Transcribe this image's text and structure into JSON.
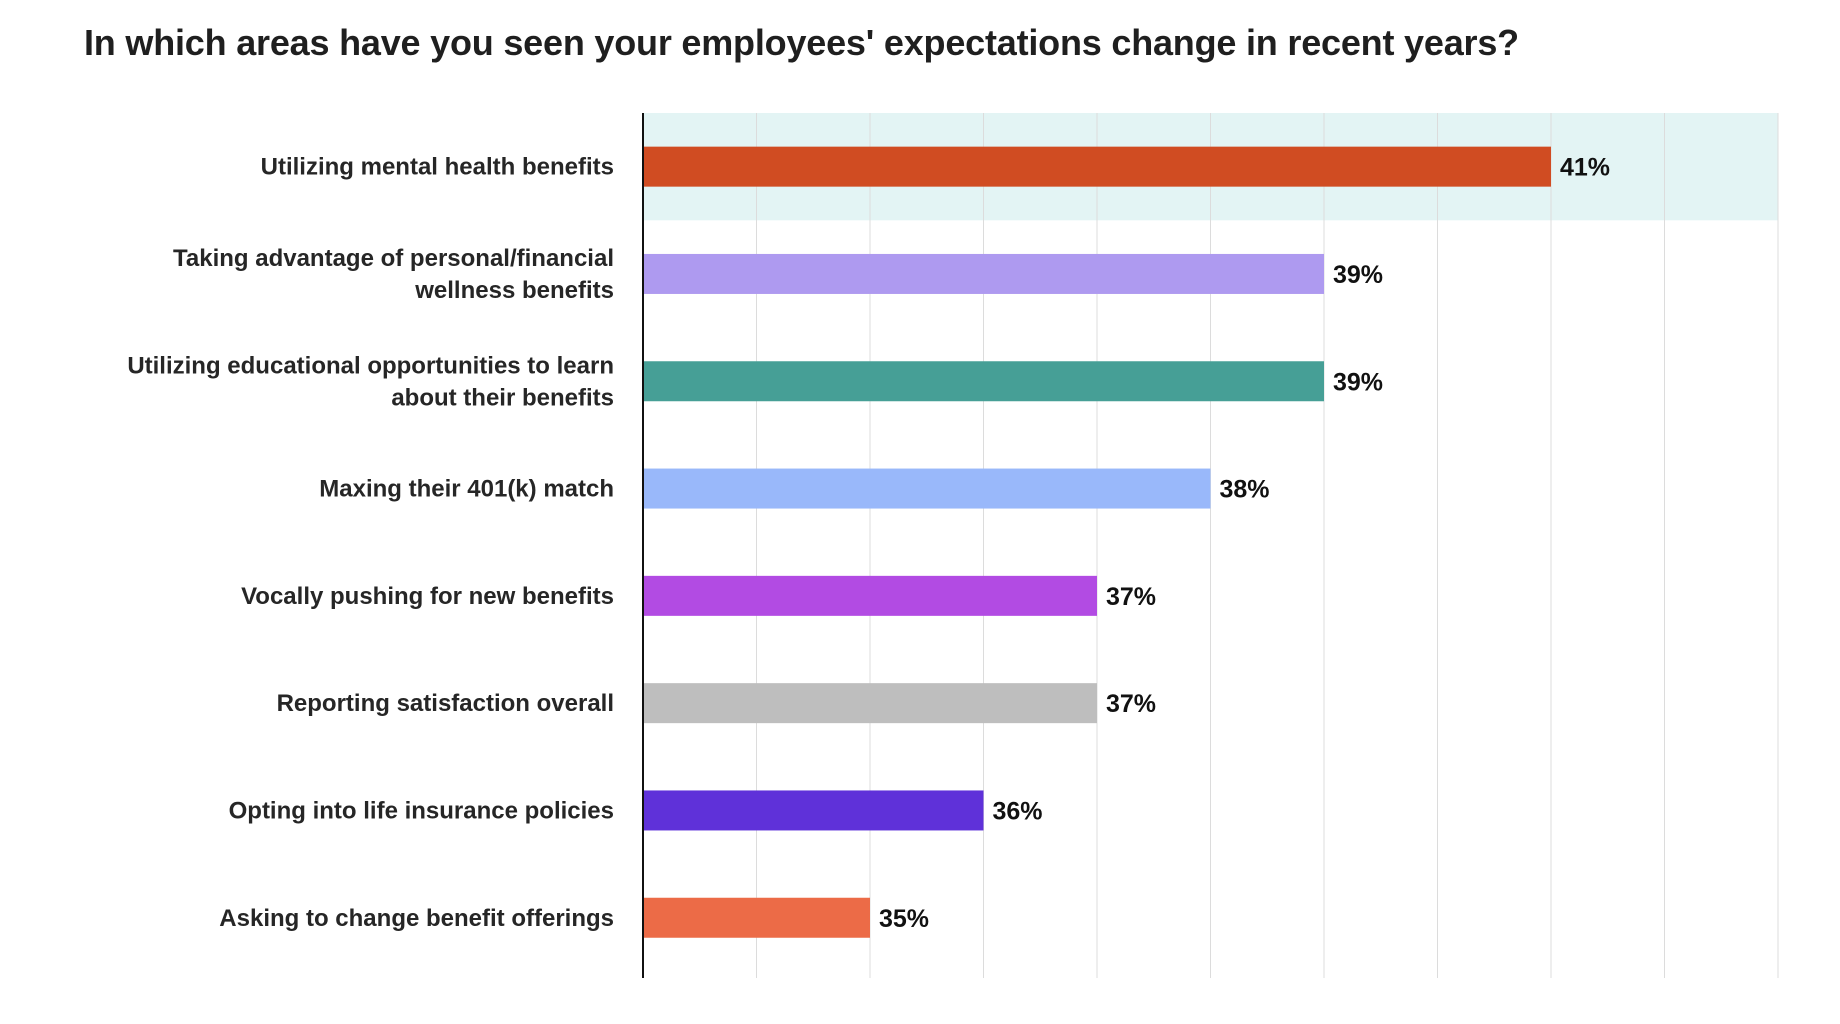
{
  "chart_data": {
    "type": "bar",
    "orientation": "horizontal",
    "title": "In which areas have you seen your employees' expectations change in recent years?",
    "xlabel": "",
    "ylabel": "",
    "xlim": [
      33,
      43
    ],
    "grid": true,
    "highlighted_category": "Utilizing mental health benefits",
    "highlight_color": "#e3f4f4",
    "categories": [
      [
        "Utilizing mental health benefits"
      ],
      [
        "Taking advantage of personal/financial",
        "wellness benefits"
      ],
      [
        "Utilizing educational opportunities to learn",
        "about their benefits"
      ],
      [
        "Maxing their 401(k) match"
      ],
      [
        "Vocally pushing for new benefits"
      ],
      [
        "Reporting satisfaction overall"
      ],
      [
        "Opting into life insurance policies"
      ],
      [
        "Asking to change benefit offerings"
      ]
    ],
    "values": [
      41,
      39,
      39,
      38,
      37,
      37,
      36,
      35
    ],
    "value_labels": [
      "41%",
      "39%",
      "39%",
      "38%",
      "37%",
      "37%",
      "36%",
      "35%"
    ],
    "colors": [
      "#d04c22",
      "#ae9af0",
      "#469f96",
      "#99b8fa",
      "#b24be3",
      "#bebebe",
      "#5f31d9",
      "#ec6b47"
    ]
  }
}
